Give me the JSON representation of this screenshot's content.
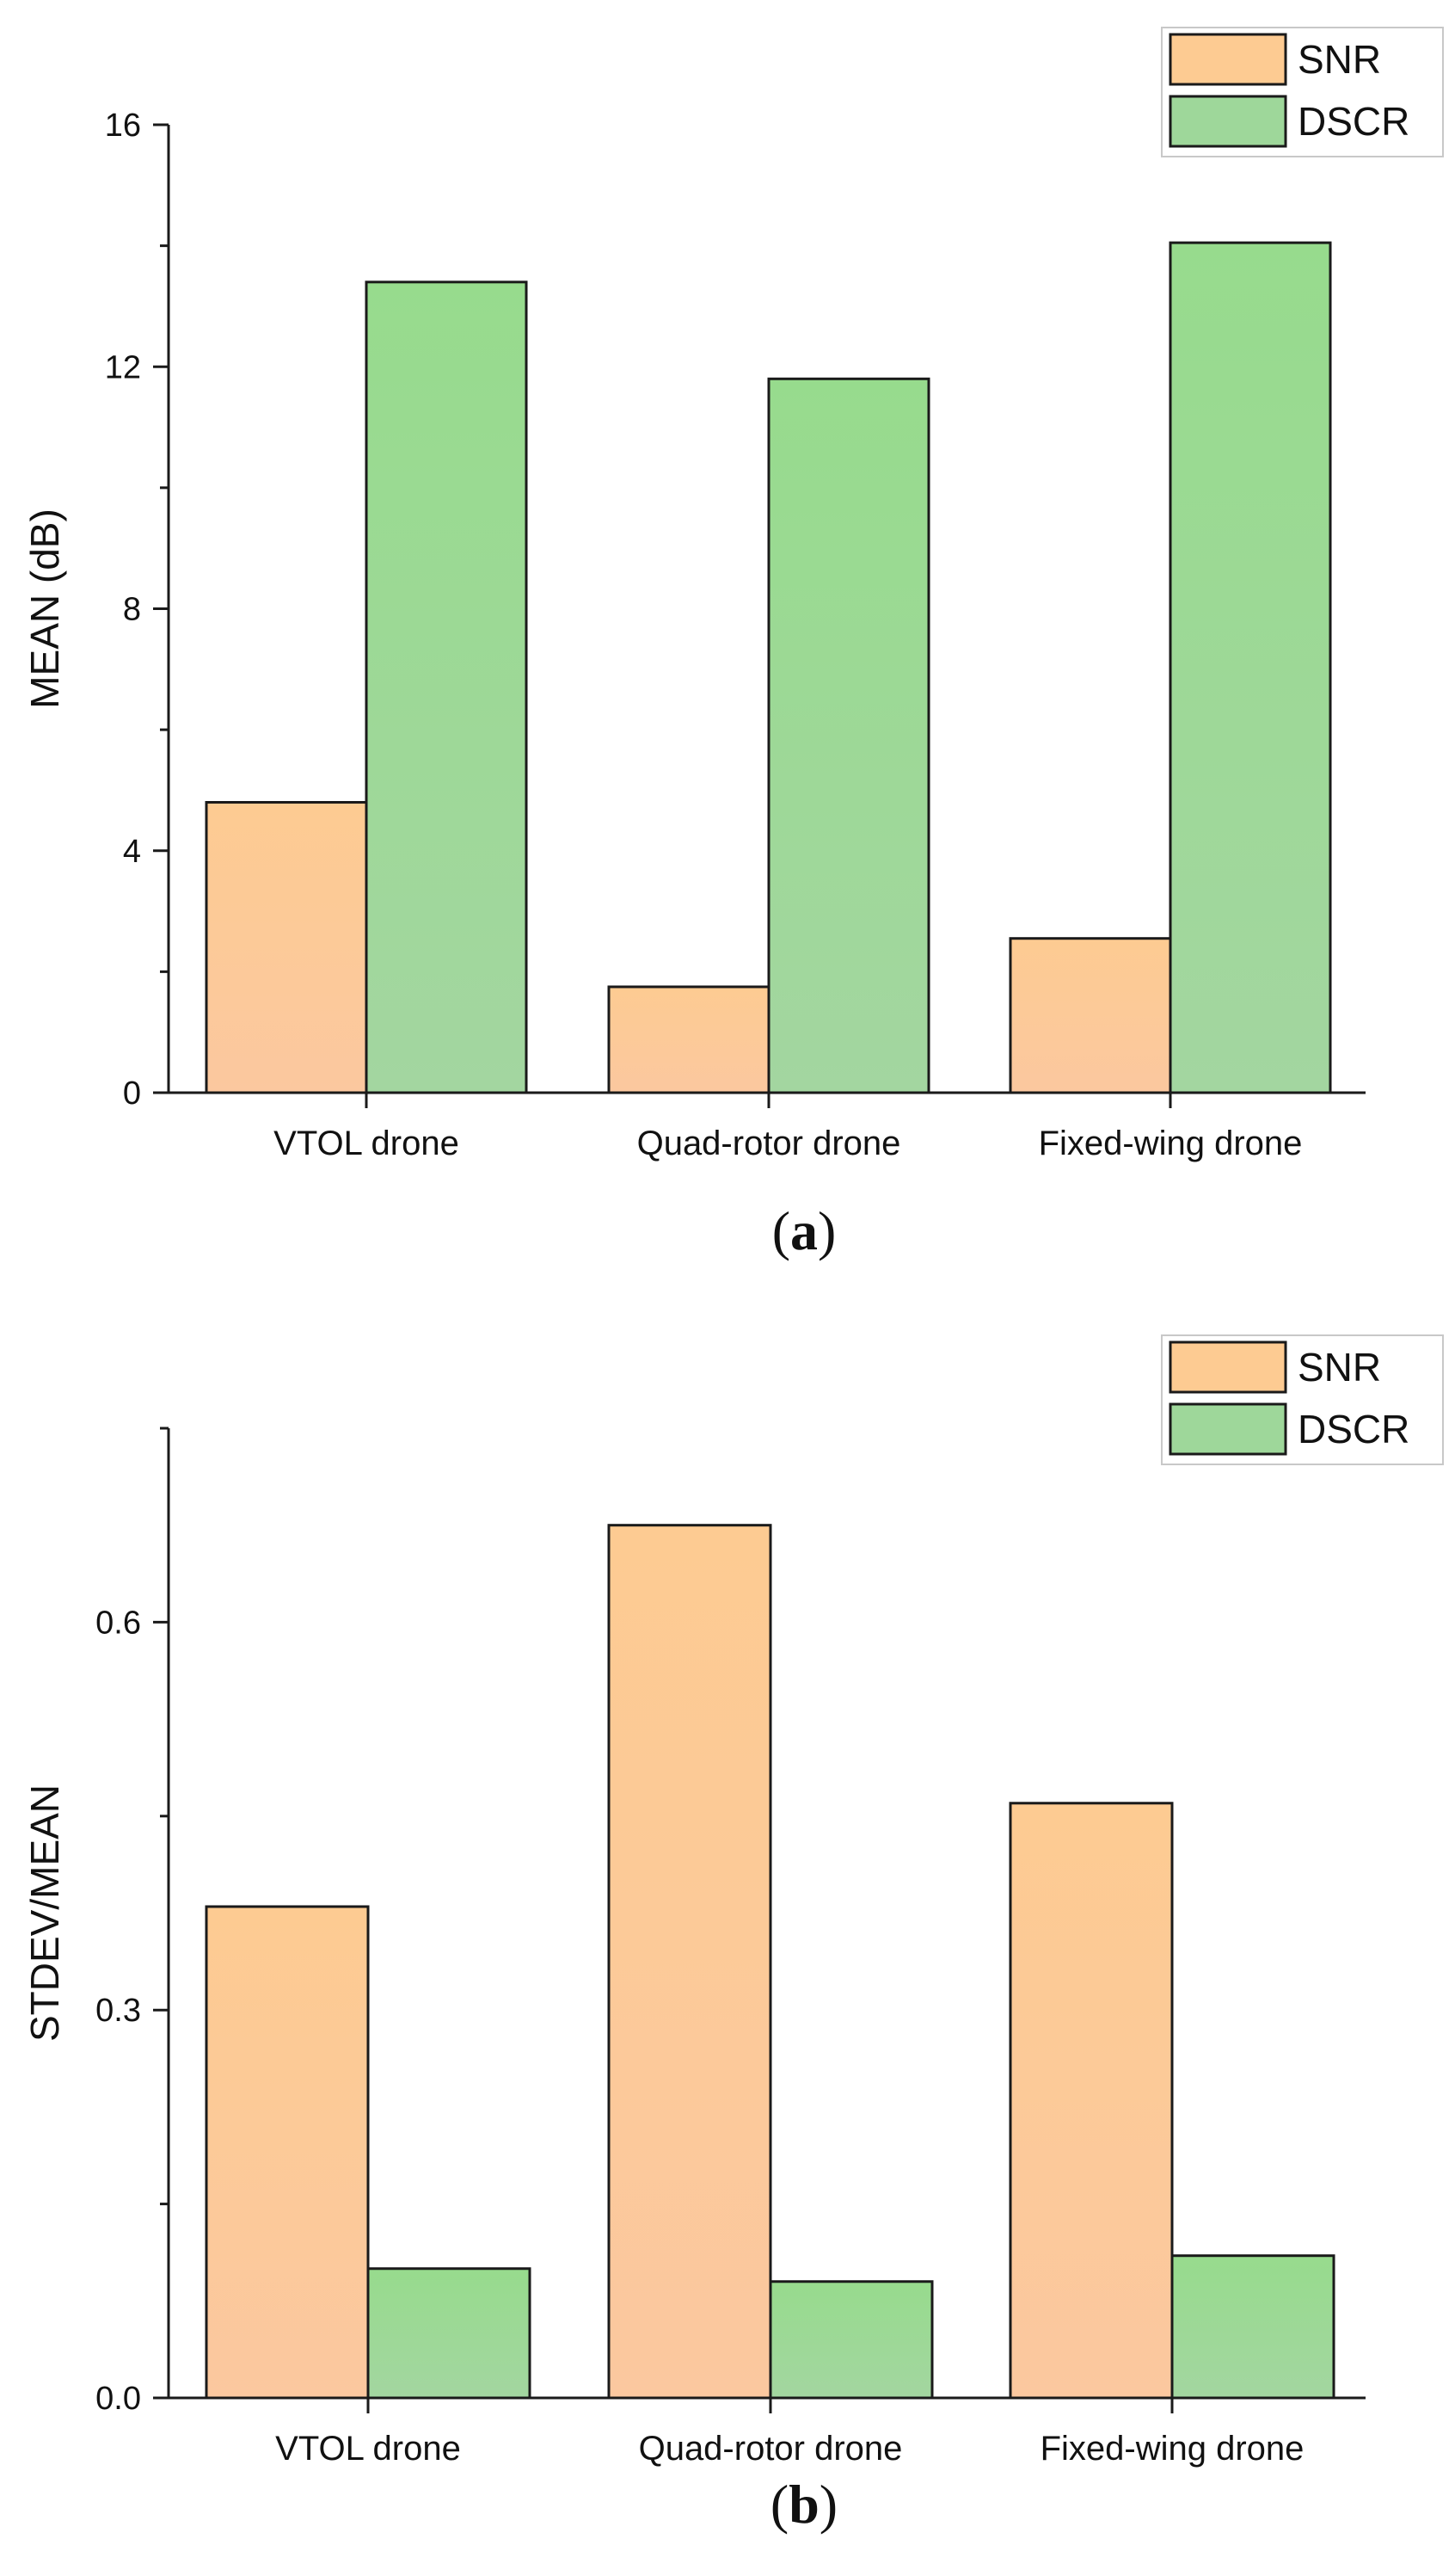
{
  "chart_data": [
    {
      "type": "bar",
      "categories": [
        "VTOL drone",
        "Quad-rotor drone",
        "Fixed-wing drone"
      ],
      "series": [
        {
          "name": "SNR",
          "values": [
            4.8,
            1.75,
            2.55
          ],
          "color": "#FDCB92"
        },
        {
          "name": "DSCR",
          "values": [
            13.4,
            11.8,
            14.05
          ],
          "color": "#9ED79A"
        }
      ],
      "ylabel": "MEAN (dB)",
      "ylim": [
        0,
        16
      ],
      "yticks": [
        "0",
        "4",
        "8",
        "12",
        "16"
      ],
      "grid": false,
      "legend_position": "top-right",
      "caption": {
        "open": "(",
        "letter": "a",
        "close": ")"
      }
    },
    {
      "type": "bar",
      "categories": [
        "VTOL drone",
        "Quad-rotor drone",
        "Fixed-wing drone"
      ],
      "series": [
        {
          "name": "SNR",
          "values": [
            0.38,
            0.675,
            0.46
          ],
          "color": "#FDCB92"
        },
        {
          "name": "DSCR",
          "values": [
            0.1,
            0.09,
            0.11
          ],
          "color": "#9ED79A"
        }
      ],
      "ylabel": "STDEV/MEAN",
      "ylim": [
        0,
        0.75
      ],
      "yticks": [
        "0.0",
        "0.3",
        "0.6"
      ],
      "grid": false,
      "legend_position": "top-right",
      "caption": {
        "open": "(",
        "letter": "b",
        "close": ")"
      }
    }
  ]
}
